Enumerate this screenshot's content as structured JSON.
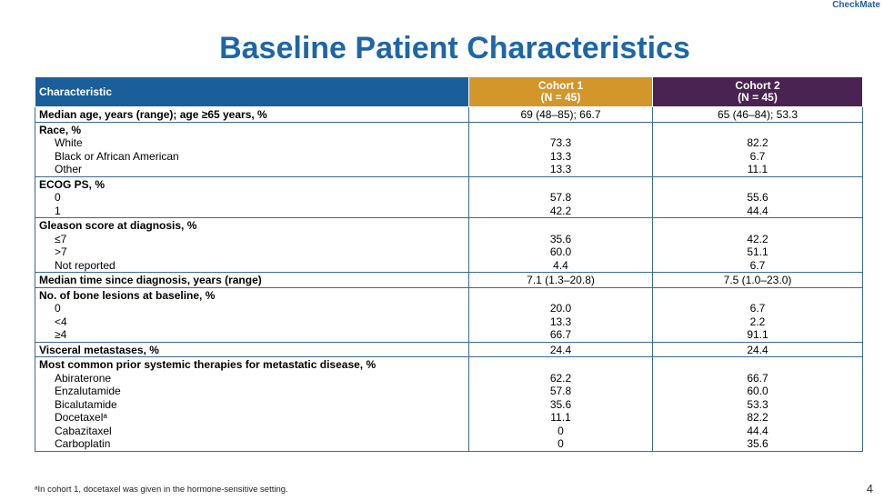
{
  "brand": "CheckMate",
  "title": "Baseline Patient Characteristics",
  "table": {
    "headers": {
      "characteristic": "Characteristic",
      "cohort1": [
        "Cohort 1",
        "(N = 45)"
      ],
      "cohort2": [
        "Cohort 2",
        "(N = 45)"
      ]
    },
    "rows": [
      {
        "label": "Median age, years (range); age ≥65 years, %",
        "items": [],
        "cohort1": [
          "69 (48–85); 66.7"
        ],
        "cohort2": [
          "65 (46–84); 53.3"
        ]
      },
      {
        "label": "Race, %",
        "items": [
          "White",
          "Black or African American",
          "Other"
        ],
        "cohort1": [
          "",
          "73.3",
          "13.3",
          "13.3"
        ],
        "cohort2": [
          "",
          "82.2",
          "6.7",
          "11.1"
        ]
      },
      {
        "label": "ECOG PS, %",
        "items": [
          "0",
          "1"
        ],
        "cohort1": [
          "",
          "57.8",
          "42.2"
        ],
        "cohort2": [
          "",
          "55.6",
          "44.4"
        ]
      },
      {
        "label": "Gleason score at diagnosis, %",
        "items": [
          "≤7",
          ">7",
          "Not reported"
        ],
        "cohort1": [
          "",
          "35.6",
          "60.0",
          "4.4"
        ],
        "cohort2": [
          "",
          "42.2",
          "51.1",
          "6.7"
        ]
      },
      {
        "label": "Median time since diagnosis, years (range)",
        "items": [],
        "cohort1": [
          "7.1 (1.3–20.8)"
        ],
        "cohort2": [
          "7.5 (1.0–23.0)"
        ]
      },
      {
        "label": "No. of bone lesions at baseline, %",
        "items": [
          "0",
          "<4",
          "≥4"
        ],
        "cohort1": [
          "",
          "20.0",
          "13.3",
          "66.7"
        ],
        "cohort2": [
          "",
          "6.7",
          "2.2",
          "91.1"
        ]
      },
      {
        "label": "Visceral metastases, %",
        "items": [],
        "cohort1": [
          "24.4"
        ],
        "cohort2": [
          "24.4"
        ]
      },
      {
        "label": "Most common prior systemic therapies for metastatic disease, %",
        "items": [
          "Abiraterone",
          "Enzalutamide",
          "Bicalutamide",
          "Docetaxelᵃ",
          "Cabazitaxel",
          "Carboplatin"
        ],
        "cohort1": [
          "",
          "62.2",
          "57.8",
          "35.6",
          "11.1",
          "0",
          "0"
        ],
        "cohort2": [
          "",
          "66.7",
          "60.0",
          "53.3",
          "82.2",
          "44.4",
          "35.6"
        ]
      }
    ]
  },
  "footnote": "ᵃIn cohort 1, docetaxel was given in the hormone-sensitive setting.",
  "page_number": "4"
}
